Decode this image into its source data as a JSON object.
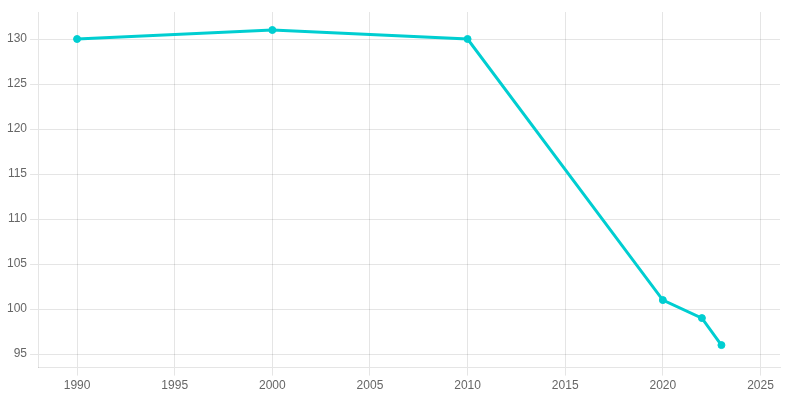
{
  "chart_data": {
    "type": "line",
    "x": [
      1990,
      2000,
      2010,
      2020,
      2022,
      2023
    ],
    "values": [
      130,
      131,
      130,
      101,
      99,
      96
    ],
    "color": "#00CED1",
    "marker": "circle",
    "xlim": [
      1988,
      2026
    ],
    "ylim": [
      93.5,
      133
    ],
    "xticks": [
      1990,
      1995,
      2000,
      2005,
      2010,
      2015,
      2020,
      2025
    ],
    "yticks": [
      95,
      100,
      105,
      110,
      115,
      120,
      125,
      130
    ],
    "grid": true
  }
}
